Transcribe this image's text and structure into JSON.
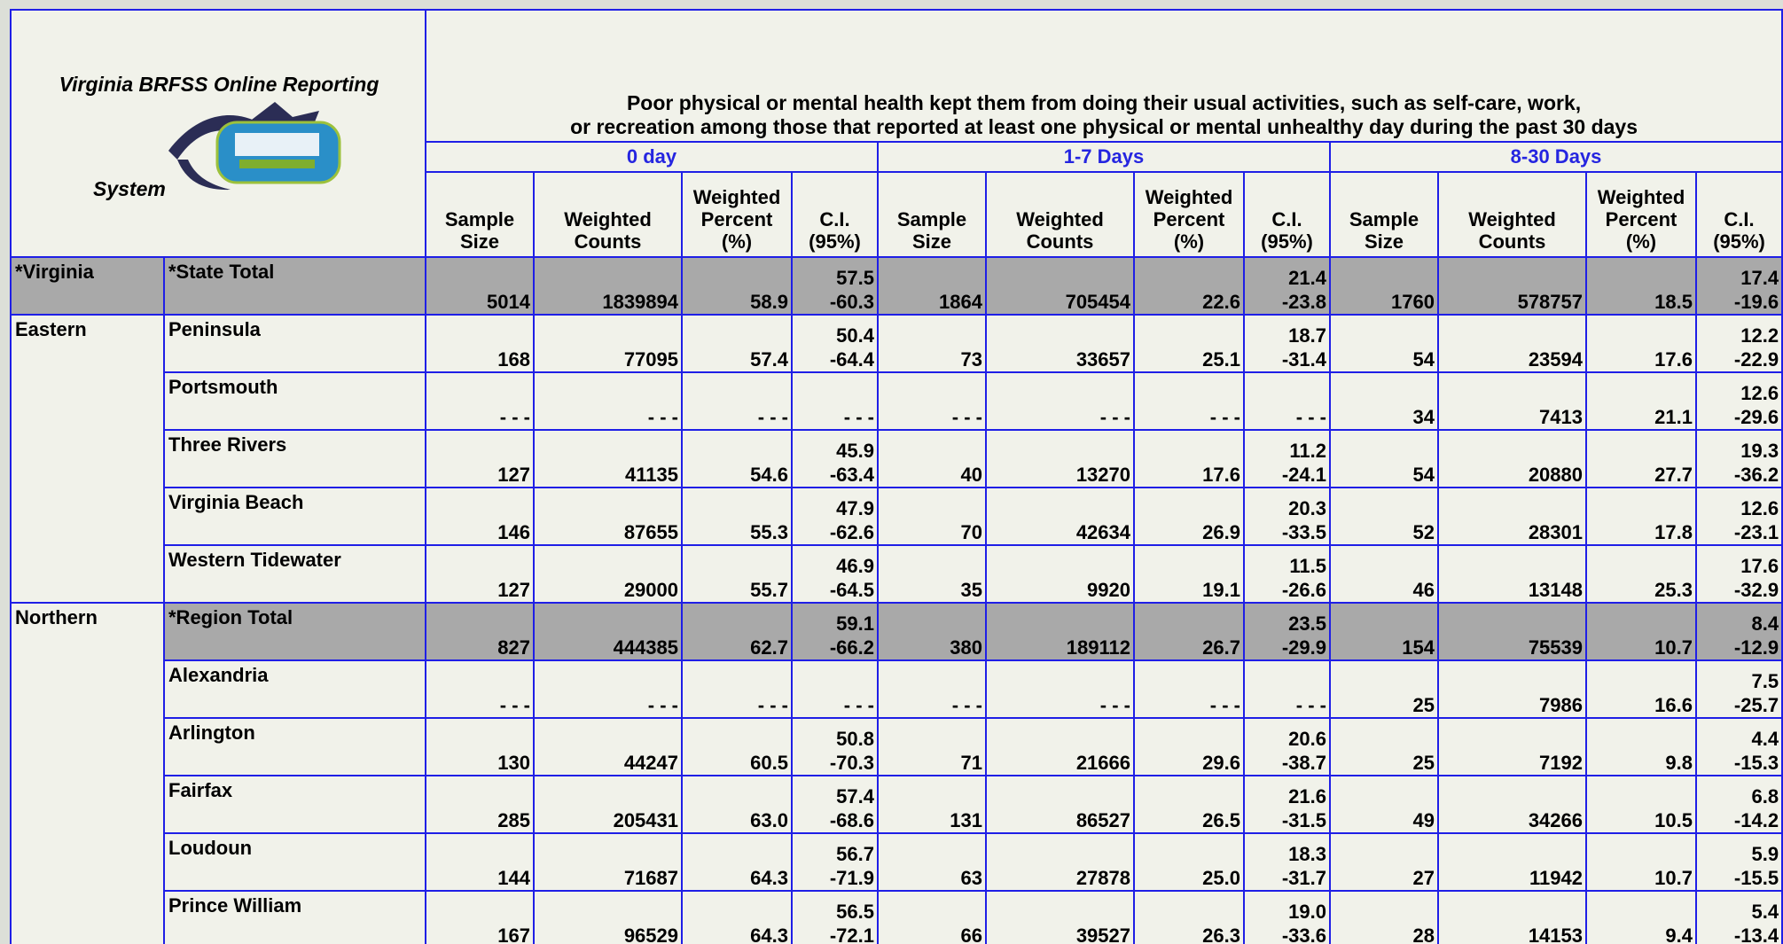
{
  "header": {
    "system_title": [
      "Virginia BRFSS Online Reporting",
      "System"
    ],
    "question": [
      "Poor physical or mental health kept them from doing their usual activities, such as self-care, work,",
      "or recreation among those that reported at least one physical or mental unhealthy day during the past 30 days"
    ],
    "groups": [
      "0 day",
      "1-7 Days",
      "8-30 Days"
    ],
    "columns": [
      [
        "Sample",
        "Size"
      ],
      [
        "Weighted",
        "Counts"
      ],
      [
        "Weighted",
        "Percent",
        "(%)"
      ],
      [
        "C.I.",
        "(95%)"
      ]
    ]
  },
  "regions": [
    {
      "name": "*Virginia",
      "total": true,
      "rows": [
        {
          "area": "*State Total",
          "total": true,
          "groups": [
            [
              "5014",
              "1839894",
              "58.9",
              [
                "57.5",
                "-60.3"
              ]
            ],
            [
              "1864",
              "705454",
              "22.6",
              [
                "21.4",
                "-23.8"
              ]
            ],
            [
              "1760",
              "578757",
              "18.5",
              [
                "17.4",
                "-19.6"
              ]
            ]
          ]
        }
      ]
    },
    {
      "name": "Eastern",
      "total": false,
      "rows": [
        {
          "area": "Peninsula",
          "total": false,
          "groups": [
            [
              "168",
              "77095",
              "57.4",
              [
                "50.4",
                "-64.4"
              ]
            ],
            [
              "73",
              "33657",
              "25.1",
              [
                "18.7",
                "-31.4"
              ]
            ],
            [
              "54",
              "23594",
              "17.6",
              [
                "12.2",
                "-22.9"
              ]
            ]
          ]
        },
        {
          "area": "Portsmouth",
          "total": false,
          "groups": [
            [
              "- - -",
              "- - -",
              "- - -",
              [
                "- - -"
              ]
            ],
            [
              "- - -",
              "- - -",
              "- - -",
              [
                "- - -"
              ]
            ],
            [
              "34",
              "7413",
              "21.1",
              [
                "12.6",
                "-29.6"
              ]
            ]
          ]
        },
        {
          "area": "Three Rivers",
          "total": false,
          "groups": [
            [
              "127",
              "41135",
              "54.6",
              [
                "45.9",
                "-63.4"
              ]
            ],
            [
              "40",
              "13270",
              "17.6",
              [
                "11.2",
                "-24.1"
              ]
            ],
            [
              "54",
              "20880",
              "27.7",
              [
                "19.3",
                "-36.2"
              ]
            ]
          ]
        },
        {
          "area": "Virginia Beach",
          "total": false,
          "groups": [
            [
              "146",
              "87655",
              "55.3",
              [
                "47.9",
                "-62.6"
              ]
            ],
            [
              "70",
              "42634",
              "26.9",
              [
                "20.3",
                "-33.5"
              ]
            ],
            [
              "52",
              "28301",
              "17.8",
              [
                "12.6",
                "-23.1"
              ]
            ]
          ]
        },
        {
          "area": "Western Tidewater",
          "total": false,
          "groups": [
            [
              "127",
              "29000",
              "55.7",
              [
                "46.9",
                "-64.5"
              ]
            ],
            [
              "35",
              "9920",
              "19.1",
              [
                "11.5",
                "-26.6"
              ]
            ],
            [
              "46",
              "13148",
              "25.3",
              [
                "17.6",
                "-32.9"
              ]
            ]
          ]
        }
      ]
    },
    {
      "name": "Northern",
      "total": false,
      "rows": [
        {
          "area": "*Region Total",
          "total": true,
          "groups": [
            [
              "827",
              "444385",
              "62.7",
              [
                "59.1",
                "-66.2"
              ]
            ],
            [
              "380",
              "189112",
              "26.7",
              [
                "23.5",
                "-29.9"
              ]
            ],
            [
              "154",
              "75539",
              "10.7",
              [
                "8.4",
                "-12.9"
              ]
            ]
          ]
        },
        {
          "area": "Alexandria",
          "total": false,
          "groups": [
            [
              "- - -",
              "- - -",
              "- - -",
              [
                "- - -"
              ]
            ],
            [
              "- - -",
              "- - -",
              "- - -",
              [
                "- - -"
              ]
            ],
            [
              "25",
              "7986",
              "16.6",
              [
                "7.5",
                "-25.7"
              ]
            ]
          ]
        },
        {
          "area": "Arlington",
          "total": false,
          "groups": [
            [
              "130",
              "44247",
              "60.5",
              [
                "50.8",
                "-70.3"
              ]
            ],
            [
              "71",
              "21666",
              "29.6",
              [
                "20.6",
                "-38.7"
              ]
            ],
            [
              "25",
              "7192",
              "9.8",
              [
                "4.4",
                "-15.3"
              ]
            ]
          ]
        },
        {
          "area": "Fairfax",
          "total": false,
          "groups": [
            [
              "285",
              "205431",
              "63.0",
              [
                "57.4",
                "-68.6"
              ]
            ],
            [
              "131",
              "86527",
              "26.5",
              [
                "21.6",
                "-31.5"
              ]
            ],
            [
              "49",
              "34266",
              "10.5",
              [
                "6.8",
                "-14.2"
              ]
            ]
          ]
        },
        {
          "area": "Loudoun",
          "total": false,
          "groups": [
            [
              "144",
              "71687",
              "64.3",
              [
                "56.7",
                "-71.9"
              ]
            ],
            [
              "63",
              "27878",
              "25.0",
              [
                "18.3",
                "-31.7"
              ]
            ],
            [
              "27",
              "11942",
              "10.7",
              [
                "5.9",
                "-15.5"
              ]
            ]
          ]
        },
        {
          "area": "Prince William",
          "total": false,
          "groups": [
            [
              "167",
              "96529",
              "64.3",
              [
                "56.5",
                "-72.1"
              ]
            ],
            [
              "66",
              "39527",
              "26.3",
              [
                "19.0",
                "-33.6"
              ]
            ],
            [
              "28",
              "14153",
              "9.4",
              [
                "5.4",
                "-13.4"
              ]
            ]
          ]
        }
      ]
    }
  ]
}
